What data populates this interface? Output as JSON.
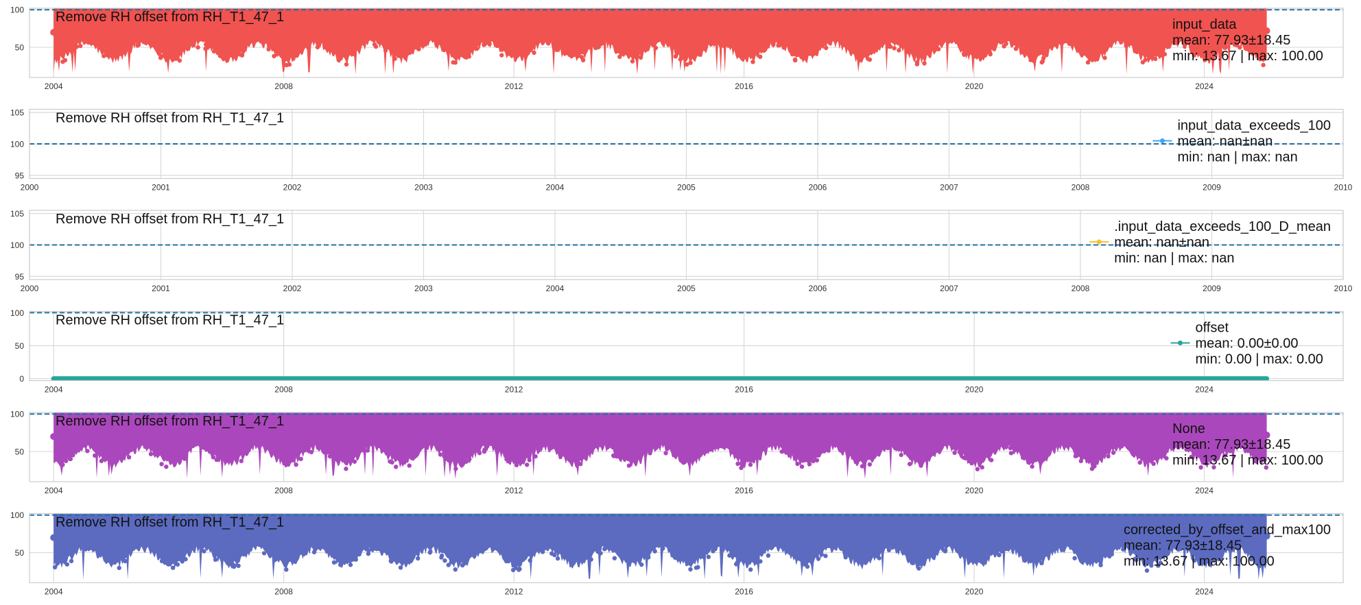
{
  "figure": {
    "background": "#ffffff",
    "grid_color": "#d9d9d9",
    "spine_color": "#cccccc",
    "reference_line_color": "#1f6fa3"
  },
  "chart_data": [
    {
      "type": "scatter",
      "title": "Remove RH offset from RH_T1_47_1",
      "x_axis": "date",
      "xlim": [
        "2003-08-01",
        "2026-06-01"
      ],
      "ylim": [
        10,
        102
      ],
      "xticks": [
        "2004",
        "2008",
        "2012",
        "2016",
        "2020",
        "2024"
      ],
      "yticks": [
        "50",
        "100"
      ],
      "reference_line": 100,
      "grid": true,
      "legend_loc": "right",
      "series": [
        {
          "name": "input_data",
          "color": "#f05350",
          "x_start": "2004-01-01",
          "x_end": "2025-02-01",
          "mean_label": "mean: 77.93±18.45",
          "minmax_label": "min: 13.67  |  max: 100.00",
          "mean": 77.93,
          "std": 18.45,
          "min": 13.67,
          "max": 100.0
        }
      ]
    },
    {
      "type": "scatter",
      "title": "Remove RH offset from RH_T1_47_1",
      "x_axis": "year",
      "xlim": [
        2000,
        2010
      ],
      "ylim": [
        94.5,
        105.5
      ],
      "xticks": [
        "2000",
        "2001",
        "2002",
        "2003",
        "2004",
        "2005",
        "2006",
        "2007",
        "2008",
        "2009",
        "2010"
      ],
      "yticks": [
        "95",
        "100",
        "105"
      ],
      "reference_line": 100,
      "grid": true,
      "legend_loc": "right",
      "series": [
        {
          "name": "input_data_exceeds_100",
          "color": "#42a5f5",
          "mean_label": "mean: nan±nan",
          "minmax_label": "min: nan  |  max: nan",
          "mean": null,
          "std": null,
          "min": null,
          "max": null
        }
      ]
    },
    {
      "type": "scatter",
      "title": "Remove RH offset from RH_T1_47_1",
      "x_axis": "year",
      "xlim": [
        2000,
        2010
      ],
      "ylim": [
        94.5,
        105.5
      ],
      "xticks": [
        "2000",
        "2001",
        "2002",
        "2003",
        "2004",
        "2005",
        "2006",
        "2007",
        "2008",
        "2009",
        "2010"
      ],
      "yticks": [
        "95",
        "100",
        "105"
      ],
      "reference_line": 100,
      "grid": true,
      "legend_loc": "right",
      "series": [
        {
          "name": ".input_data_exceeds_100_D_mean",
          "color": "#fbc02d",
          "mean_label": "mean: nan±nan",
          "minmax_label": "min: nan  |  max: nan",
          "mean": null,
          "std": null,
          "min": null,
          "max": null
        }
      ]
    },
    {
      "type": "line",
      "title": "Remove RH offset from RH_T1_47_1",
      "x_axis": "date",
      "xlim": [
        "2003-08-01",
        "2026-06-01"
      ],
      "ylim": [
        -3,
        102
      ],
      "xticks": [
        "2004",
        "2008",
        "2012",
        "2016",
        "2020",
        "2024"
      ],
      "yticks": [
        "0",
        "50",
        "100"
      ],
      "reference_line": 100,
      "grid": true,
      "legend_loc": "right",
      "series": [
        {
          "name": "offset",
          "color": "#26a69a",
          "x_start": "2004-01-01",
          "x_end": "2025-02-01",
          "mean_label": "mean: 0.00±0.00",
          "minmax_label": "min: 0.00  |  max: 0.00",
          "mean": 0.0,
          "std": 0.0,
          "min": 0.0,
          "max": 0.0
        }
      ]
    },
    {
      "type": "scatter",
      "title": "Remove RH offset from RH_T1_47_1",
      "x_axis": "date",
      "xlim": [
        "2003-08-01",
        "2026-06-01"
      ],
      "ylim": [
        10,
        102
      ],
      "xticks": [
        "2004",
        "2008",
        "2012",
        "2016",
        "2020",
        "2024"
      ],
      "yticks": [
        "50",
        "100"
      ],
      "reference_line": 100,
      "grid": true,
      "legend_loc": "right",
      "series": [
        {
          "name": "None",
          "color": "#ab47bc",
          "x_start": "2004-01-01",
          "x_end": "2025-02-01",
          "mean_label": "mean: 77.93±18.45",
          "minmax_label": "min: 13.67  |  max: 100.00",
          "mean": 77.93,
          "std": 18.45,
          "min": 13.67,
          "max": 100.0
        }
      ]
    },
    {
      "type": "scatter",
      "title": "Remove RH offset from RH_T1_47_1",
      "x_axis": "date",
      "xlim": [
        "2003-08-01",
        "2026-06-01"
      ],
      "ylim": [
        10,
        102
      ],
      "xticks": [
        "2004",
        "2008",
        "2012",
        "2016",
        "2020",
        "2024"
      ],
      "yticks": [
        "50",
        "100"
      ],
      "reference_line": 100,
      "grid": true,
      "legend_loc": "right",
      "series": [
        {
          "name": "corrected_by_offset_and_max100",
          "color": "#5c6bc0",
          "x_start": "2004-01-01",
          "x_end": "2025-02-01",
          "mean_label": "mean: 77.93±18.45",
          "minmax_label": "min: 13.67  |  max: 100.00",
          "mean": 77.93,
          "std": 18.45,
          "min": 13.67,
          "max": 100.0
        }
      ]
    }
  ]
}
